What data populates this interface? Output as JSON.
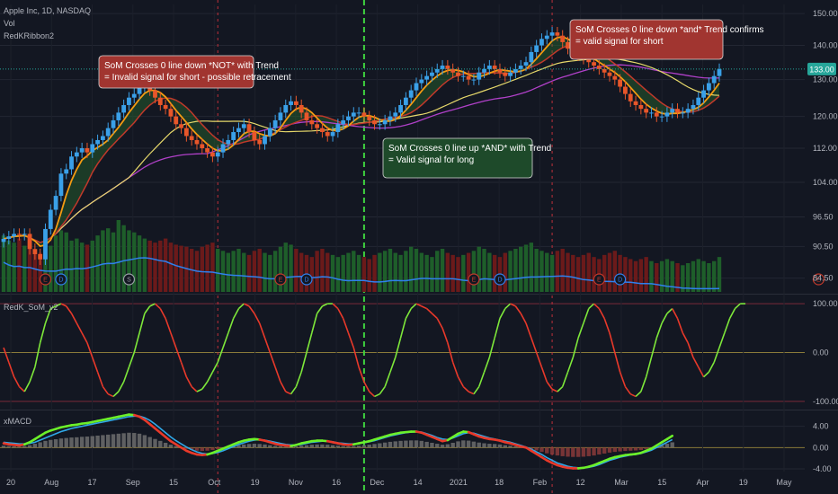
{
  "header": {
    "symbol_line": "Apple Inc, 1D, NASDAQ",
    "vol_label": "Vol",
    "ribbon_label": "RedKRibbon2",
    "som_label": "RedK_SoM_v2",
    "macd_label": "xMACD"
  },
  "annotations": [
    {
      "id": "ann-left",
      "line1": "SoM Crosses 0 line down *NOT* with Trend",
      "line2": "= Invalid signal for short - possible retracement",
      "color": "#a13530"
    },
    {
      "id": "ann-mid",
      "line1": "SoM Crosses 0 line up *AND* with Trend",
      "line2": "= Valid signal for long",
      "color": "#1e4a2a"
    },
    {
      "id": "ann-right",
      "line1": "SoM Crosses 0 line down *and* Trend confirms",
      "line2": "= valid signal for short",
      "color": "#a13530"
    }
  ],
  "price_badge": {
    "text": "133.00",
    "color": "#26a69a"
  },
  "events": {
    "earnings_label": "E",
    "split_label": "S",
    "dividend_label": "D"
  },
  "chart_data": [
    {
      "panel": "price",
      "type": "candlestick",
      "title": "Apple Inc, 1D, NASDAQ",
      "y_ticks": [
        "150.00",
        "140.00",
        "130.00",
        "120.00",
        "112.00",
        "104.00",
        "96.50",
        "90.50",
        "84.50"
      ],
      "ylim": [
        82,
        153
      ],
      "scale": "log",
      "last_price": 133.0,
      "x_ticks": [
        "20",
        "Aug",
        "17",
        "Sep",
        "15",
        "Oct",
        "19",
        "Nov",
        "16",
        "Dec",
        "14",
        "2021",
        "18",
        "Feb",
        "12",
        "Mar",
        "15",
        "Apr",
        "19",
        "May"
      ],
      "close_series": [
        92,
        92.5,
        93,
        92.8,
        93,
        90,
        89,
        88,
        94,
        98,
        101,
        106,
        107,
        110,
        111,
        112,
        111,
        113,
        114,
        115,
        117,
        119,
        121,
        123,
        125,
        126,
        128,
        129,
        127,
        125,
        123,
        122,
        120,
        118,
        117,
        115,
        114,
        113,
        112,
        111,
        110,
        111,
        113,
        114,
        116,
        117,
        118,
        116,
        114,
        113,
        115,
        117,
        119,
        121,
        123,
        124,
        123,
        121,
        119,
        118,
        117,
        116,
        115,
        116,
        118,
        119,
        120,
        121,
        121,
        120,
        119,
        118,
        118,
        119,
        120,
        121,
        123,
        125,
        127,
        129,
        130,
        131,
        132,
        133,
        134,
        133,
        132,
        131,
        131,
        130,
        130,
        132,
        133,
        134,
        133,
        132,
        131,
        132,
        133,
        134,
        135,
        138,
        140,
        142,
        143,
        144,
        143,
        141,
        139,
        138,
        137,
        136,
        135,
        134,
        133,
        132,
        131,
        130,
        128,
        126,
        124,
        123,
        122,
        121,
        121,
        120,
        120,
        121,
        122,
        121,
        121,
        122,
        123,
        125,
        127,
        129,
        131,
        133
      ],
      "volume_series": [
        55,
        50,
        48,
        52,
        45,
        50,
        40,
        38,
        42,
        45,
        55,
        60,
        58,
        50,
        52,
        48,
        46,
        50,
        55,
        60,
        62,
        58,
        70,
        65,
        60,
        58,
        55,
        52,
        50,
        48,
        50,
        52,
        48,
        46,
        45,
        44,
        42,
        40,
        44,
        46,
        48,
        42,
        40,
        38,
        40,
        42,
        38,
        36,
        40,
        42,
        38,
        36,
        40,
        44,
        48,
        46,
        42,
        38,
        36,
        34,
        40,
        42,
        38,
        36,
        34,
        36,
        38,
        40,
        36,
        34,
        32,
        36,
        38,
        40,
        42,
        38,
        36,
        40,
        44,
        42,
        38,
        36,
        34,
        40,
        42,
        38,
        36,
        34,
        36,
        38,
        40,
        44,
        42,
        38,
        36,
        34,
        38,
        40,
        42,
        44,
        46,
        48,
        42,
        40,
        38,
        36,
        40,
        42,
        38,
        36,
        34,
        36,
        38,
        34,
        32,
        36,
        38,
        40,
        36,
        34,
        32,
        30,
        32,
        34,
        30,
        28,
        30,
        32,
        30,
        28,
        26,
        28,
        30,
        32,
        30,
        28,
        30,
        34
      ],
      "events": [
        {
          "type": "E",
          "index": 8
        },
        {
          "type": "D",
          "index": 11
        },
        {
          "type": "S",
          "index": 24
        },
        {
          "type": "E",
          "index": 53
        },
        {
          "type": "D",
          "index": 58
        },
        {
          "type": "E",
          "index": 90
        },
        {
          "type": "D",
          "index": 95
        },
        {
          "type": "E",
          "index": 114
        },
        {
          "type": "D",
          "index": 118
        },
        {
          "type": "E",
          "index": 156
        }
      ]
    },
    {
      "panel": "som",
      "type": "line",
      "title": "RedK_SoM_v2",
      "y_ticks": [
        "100.00",
        "0.00",
        "-100.00"
      ],
      "ylim": [
        -115,
        115
      ],
      "values": [
        10,
        -20,
        -50,
        -70,
        -80,
        -60,
        -30,
        20,
        60,
        90,
        95,
        100,
        95,
        80,
        60,
        40,
        20,
        -10,
        -40,
        -70,
        -85,
        -90,
        -80,
        -60,
        -30,
        0,
        40,
        80,
        95,
        100,
        90,
        70,
        40,
        10,
        -20,
        -50,
        -70,
        -80,
        -75,
        -60,
        -40,
        -20,
        10,
        40,
        70,
        90,
        100,
        95,
        80,
        60,
        30,
        0,
        -30,
        -60,
        -80,
        -85,
        -70,
        -40,
        0,
        40,
        80,
        95,
        100,
        100,
        90,
        70,
        40,
        10,
        -30,
        -60,
        -80,
        -90,
        -85,
        -70,
        -40,
        -10,
        30,
        70,
        90,
        100,
        95,
        90,
        80,
        70,
        50,
        20,
        -20,
        -50,
        -70,
        -80,
        -85,
        -70,
        -40,
        -10,
        30,
        70,
        90,
        100,
        95,
        80,
        60,
        30,
        0,
        -30,
        -60,
        -75,
        -80,
        -70,
        -40,
        -10,
        30,
        60,
        90,
        100,
        90,
        70,
        40,
        0,
        -40,
        -70,
        -85,
        -90,
        -80,
        -50,
        -10,
        30,
        60,
        80,
        90,
        70,
        40,
        20,
        -10,
        -30,
        -50,
        -40,
        -20,
        10,
        40,
        70,
        90,
        100,
        100
      ]
    },
    {
      "panel": "macd",
      "type": "line+bar",
      "title": "xMACD",
      "y_ticks": [
        "4.00",
        "0.00",
        "-4.00"
      ],
      "ylim": [
        -4.5,
        6.8
      ],
      "macd": [
        0.8,
        0.6,
        0.5,
        0.4,
        0.6,
        1.0,
        1.6,
        2.2,
        2.8,
        3.2,
        3.5,
        3.8,
        4.0,
        4.2,
        4.3,
        4.5,
        4.6,
        4.8,
        5.0,
        5.2,
        5.4,
        5.6,
        5.8,
        6.0,
        6.2,
        6.1,
        5.8,
        5.2,
        4.4,
        3.6,
        2.8,
        2.0,
        1.2,
        0.6,
        0.0,
        -0.6,
        -1.0,
        -1.3,
        -1.4,
        -1.3,
        -1.0,
        -0.6,
        -0.2,
        0.2,
        0.6,
        1.0,
        1.3,
        1.5,
        1.6,
        1.5,
        1.3,
        1.0,
        0.7,
        0.5,
        0.4,
        0.3,
        0.5,
        0.8,
        1.0,
        1.2,
        1.3,
        1.3,
        1.2,
        1.0,
        0.8,
        0.6,
        0.5,
        0.6,
        0.8,
        1.0,
        1.2,
        1.5,
        1.8,
        2.1,
        2.4,
        2.6,
        2.8,
        2.9,
        3.0,
        3.0,
        2.8,
        2.4,
        2.0,
        1.6,
        1.2,
        1.4,
        2.0,
        2.6,
        3.0,
        2.9,
        2.5,
        2.1,
        1.8,
        1.6,
        1.5,
        1.3,
        1.0,
        0.8,
        0.5,
        0.2,
        0.0,
        -0.6,
        -1.2,
        -1.8,
        -2.4,
        -2.9,
        -3.3,
        -3.6,
        -3.8,
        -3.9,
        -3.9,
        -3.8,
        -3.6,
        -3.3,
        -2.9,
        -2.5,
        -2.1,
        -1.8,
        -1.6,
        -1.4,
        -1.3,
        -1.2,
        -1.0,
        -0.6,
        -0.2,
        0.4,
        1.0,
        1.6,
        2.2
      ],
      "signal": [
        1.0,
        0.9,
        0.8,
        0.7,
        0.7,
        0.8,
        1.0,
        1.4,
        1.8,
        2.2,
        2.6,
        3.0,
        3.3,
        3.6,
        3.8,
        4.0,
        4.2,
        4.4,
        4.6,
        4.8,
        5.0,
        5.2,
        5.4,
        5.6,
        5.8,
        5.9,
        5.9,
        5.6,
        5.1,
        4.4,
        3.6,
        2.8,
        2.0,
        1.3,
        0.7,
        0.1,
        -0.4,
        -0.8,
        -1.1,
        -1.2,
        -1.1,
        -0.9,
        -0.6,
        -0.2,
        0.2,
        0.6,
        0.9,
        1.2,
        1.4,
        1.5,
        1.4,
        1.2,
        1.0,
        0.8,
        0.6,
        0.5,
        0.5,
        0.6,
        0.8,
        1.0,
        1.1,
        1.2,
        1.2,
        1.1,
        0.9,
        0.8,
        0.7,
        0.7,
        0.8,
        0.9,
        1.1,
        1.3,
        1.6,
        1.9,
        2.2,
        2.4,
        2.6,
        2.8,
        2.9,
        3.0,
        2.9,
        2.6,
        2.3,
        1.9,
        1.6,
        1.5,
        1.8,
        2.2,
        2.6,
        2.8,
        2.7,
        2.4,
        2.1,
        1.8,
        1.6,
        1.4,
        1.2,
        1.0,
        0.7,
        0.4,
        0.1,
        -0.3,
        -0.8,
        -1.3,
        -1.9,
        -2.4,
        -2.9,
        -3.2,
        -3.5,
        -3.7,
        -3.8,
        -3.8,
        -3.7,
        -3.5,
        -3.2,
        -2.8,
        -2.4,
        -2.1,
        -1.8,
        -1.6,
        -1.4,
        -1.3,
        -1.1,
        -0.8,
        -0.5,
        0.0,
        0.5,
        1.0,
        1.5
      ]
    }
  ]
}
